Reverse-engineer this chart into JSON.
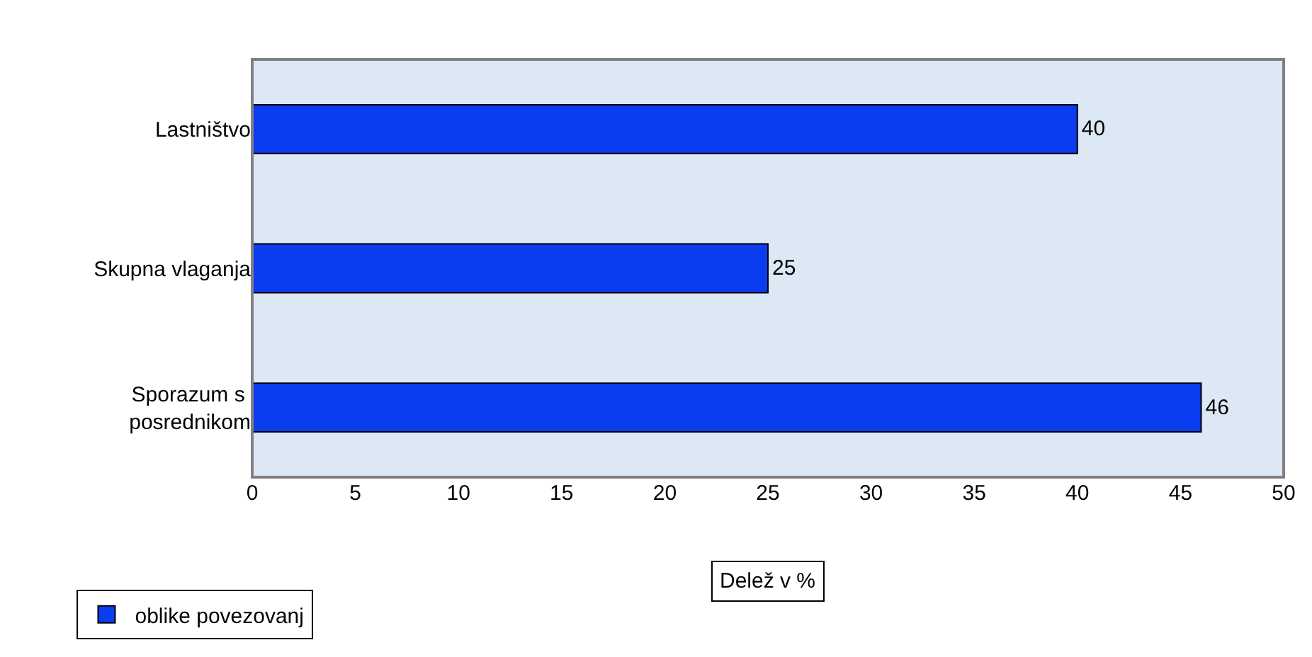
{
  "chart_data": {
    "type": "bar",
    "orientation": "horizontal",
    "categories": [
      "Lastništvo",
      "Skupna vlaganja",
      "Sporazum s posrednikom"
    ],
    "series": [
      {
        "name": "oblike povezovanj",
        "color": "#0a3cf0",
        "values": [
          40,
          25,
          46
        ]
      }
    ],
    "xlabel": "Delež v %",
    "xlim": [
      0,
      50
    ],
    "xticks": [
      0,
      5,
      10,
      15,
      20,
      25,
      30,
      35,
      40,
      45,
      50
    ],
    "data_labels": true,
    "grid": false,
    "legend": "bottom left"
  }
}
